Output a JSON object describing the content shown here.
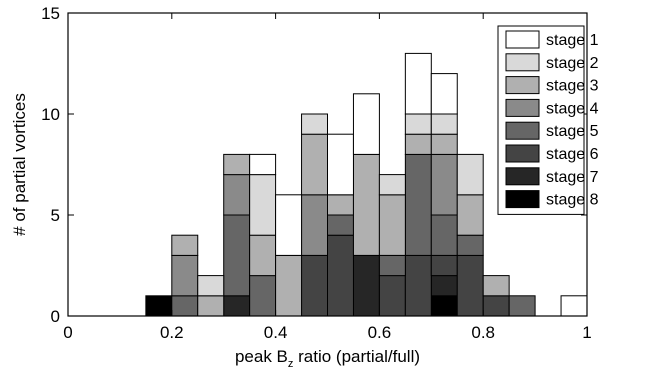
{
  "chart_data": {
    "type": "bar",
    "stacked": true,
    "xlabel_main": "peak B",
    "xlabel_sub": "z",
    "xlabel_rest": " ratio (partial/full)",
    "ylabel": "# of partial vortices",
    "xlim": [
      0,
      1
    ],
    "ylim": [
      0,
      15
    ],
    "xticks": [
      "0",
      "0.2",
      "0.4",
      "0.6",
      "0.8",
      "1"
    ],
    "yticks": [
      "0",
      "5",
      "10",
      "15"
    ],
    "bin_width": 0.05,
    "bin_starts": [
      0.15,
      0.2,
      0.25,
      0.3,
      0.35,
      0.4,
      0.45,
      0.5,
      0.55,
      0.6,
      0.65,
      0.7,
      0.75,
      0.8,
      0.85,
      0.95
    ],
    "series": [
      {
        "name": "stage 8",
        "color": "#000000",
        "values": [
          1,
          0,
          0,
          0,
          0,
          0,
          0,
          0,
          0,
          0,
          0,
          1,
          0,
          0,
          0,
          0
        ]
      },
      {
        "name": "stage 7",
        "color": "#262626",
        "values": [
          0,
          0,
          0,
          1,
          0,
          0,
          0,
          0,
          3,
          0,
          0,
          1,
          0,
          0,
          0,
          0
        ]
      },
      {
        "name": "stage 6",
        "color": "#444444",
        "values": [
          0,
          0,
          0,
          0,
          0,
          0,
          3,
          4,
          0,
          2,
          3,
          1,
          3,
          1,
          0,
          0
        ]
      },
      {
        "name": "stage 5",
        "color": "#666666",
        "values": [
          0,
          1,
          0,
          4,
          2,
          0,
          0,
          1,
          0,
          1,
          5,
          2,
          1,
          0,
          1,
          0
        ]
      },
      {
        "name": "stage 4",
        "color": "#8a8a8a",
        "values": [
          0,
          2,
          0,
          2,
          0,
          0,
          3,
          0,
          0,
          0,
          0,
          3,
          0,
          0,
          0,
          0
        ]
      },
      {
        "name": "stage 3",
        "color": "#b0b0b0",
        "values": [
          0,
          1,
          1,
          1,
          2,
          3,
          3,
          1,
          5,
          3,
          1,
          1,
          2,
          1,
          0,
          0
        ]
      },
      {
        "name": "stage 2",
        "color": "#d9d9d9",
        "values": [
          0,
          0,
          1,
          0,
          3,
          0,
          1,
          0,
          0,
          1,
          1,
          1,
          2,
          0,
          0,
          0
        ]
      },
      {
        "name": "stage 1",
        "color": "#ffffff",
        "values": [
          0,
          0,
          0,
          0,
          1,
          3,
          0,
          3,
          3,
          0,
          3,
          2,
          0,
          0,
          0,
          1
        ]
      }
    ],
    "legend_position": "top-right",
    "legend_order": [
      "stage 1",
      "stage 2",
      "stage 3",
      "stage 4",
      "stage 5",
      "stage 6",
      "stage 7",
      "stage 8"
    ]
  }
}
